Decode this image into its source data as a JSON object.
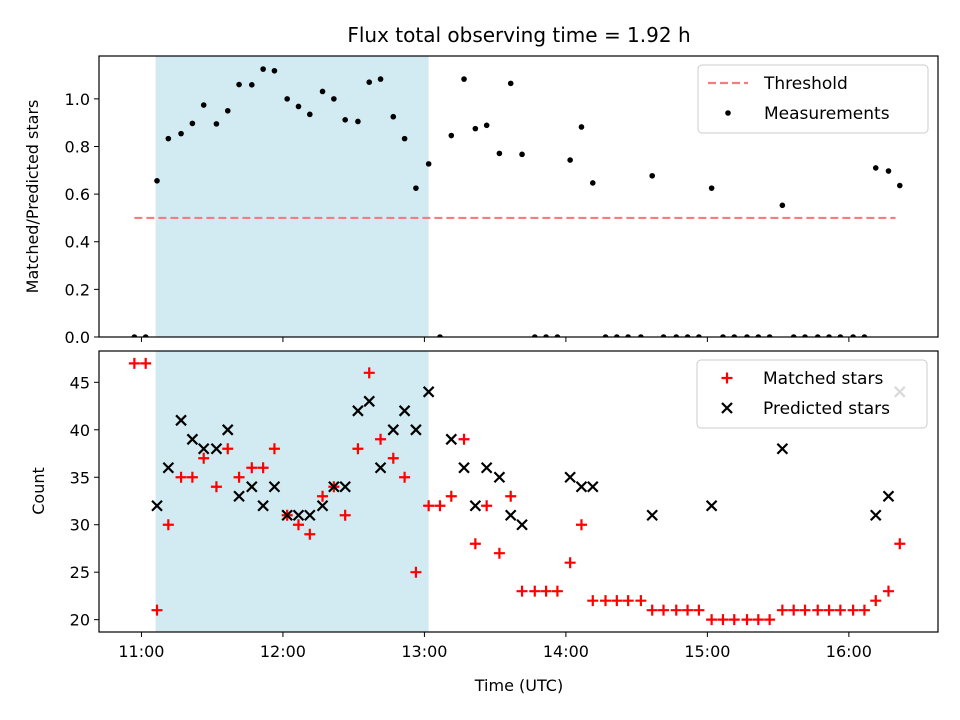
{
  "chart_data": [
    {
      "type": "scatter",
      "title": "Flux total observing time = 1.92 h",
      "xlabel": "",
      "ylabel": "Matched/Predicted stars",
      "x_unit": "hours (UTC)",
      "xlim": [
        10.7,
        16.63
      ],
      "ylim": [
        0,
        1.18
      ],
      "yticks": [
        0.0,
        0.2,
        0.4,
        0.6,
        0.8,
        1.0
      ],
      "ytick_labels": [
        "0.0",
        "0.2",
        "0.4",
        "0.6",
        "0.8",
        "1.0"
      ],
      "xticks": [
        11,
        12,
        13,
        14,
        15,
        16
      ],
      "shaded_span": [
        11.1,
        13.03
      ],
      "shade_color": "#add8e6",
      "grid": false,
      "legend_position": "upper right",
      "legend": [
        "Threshold",
        "Measurements"
      ],
      "series": [
        {
          "name": "Threshold",
          "kind": "dashed-line",
          "color": "#f08080",
          "x": [
            10.95,
            16.33
          ],
          "y": [
            0.5,
            0.5
          ]
        },
        {
          "name": "Measurements",
          "kind": "dot",
          "color": "#000000",
          "x": [
            10.95,
            11.03,
            11.11,
            11.19,
            11.28,
            11.36,
            11.44,
            11.53,
            11.61,
            11.69,
            11.78,
            11.86,
            11.94,
            12.03,
            12.11,
            12.19,
            12.28,
            12.36,
            12.44,
            12.53,
            12.61,
            12.69,
            12.78,
            12.86,
            12.94,
            13.03,
            13.11,
            13.19,
            13.28,
            13.36,
            13.44,
            13.53,
            13.61,
            13.69,
            13.78,
            13.86,
            13.94,
            14.03,
            14.11,
            14.19,
            14.28,
            14.36,
            14.44,
            14.53,
            14.61,
            14.69,
            14.78,
            14.86,
            14.94,
            15.03,
            15.11,
            15.19,
            15.28,
            15.36,
            15.44,
            15.53,
            15.61,
            15.69,
            15.78,
            15.86,
            15.94,
            16.03,
            16.11,
            16.19,
            16.28,
            16.36
          ],
          "y": [
            0.0,
            0.0,
            0.656,
            0.833,
            0.854,
            0.897,
            0.974,
            0.895,
            0.95,
            1.06,
            1.059,
            1.125,
            1.118,
            1.0,
            0.968,
            0.935,
            1.031,
            1.0,
            0.912,
            0.905,
            1.07,
            1.083,
            0.925,
            0.833,
            0.625,
            0.727,
            0.0,
            0.846,
            1.083,
            0.875,
            0.889,
            0.771,
            1.065,
            0.767,
            0.0,
            0.0,
            0.0,
            0.743,
            0.882,
            0.647,
            0.0,
            0.0,
            0.0,
            0.0,
            0.677,
            0.0,
            0.0,
            0.0,
            0.0,
            0.625,
            0.0,
            0.0,
            0.0,
            0.0,
            0.0,
            0.553,
            0.0,
            0.0,
            0.0,
            0.0,
            0.0,
            0.0,
            0.0,
            0.71,
            0.697,
            0.636
          ]
        }
      ]
    },
    {
      "type": "scatter",
      "title": "",
      "xlabel": "Time (UTC)",
      "ylabel": "Count",
      "x_unit": "hours (UTC)",
      "xlim": [
        10.7,
        16.63
      ],
      "ylim": [
        18.7,
        48.3
      ],
      "yticks": [
        20,
        25,
        30,
        35,
        40,
        45
      ],
      "ytick_labels": [
        "20",
        "25",
        "30",
        "35",
        "40",
        "45"
      ],
      "xticks": [
        11,
        12,
        13,
        14,
        15,
        16
      ],
      "xtick_labels": [
        "11:00",
        "12:00",
        "13:00",
        "14:00",
        "15:00",
        "16:00"
      ],
      "shaded_span": [
        11.1,
        13.03
      ],
      "shade_color": "#add8e6",
      "grid": false,
      "legend_position": "upper right",
      "legend": [
        "Matched stars",
        "Predicted stars"
      ],
      "series": [
        {
          "name": "Matched stars",
          "kind": "plus",
          "color": "#ff0000",
          "x": [
            10.95,
            11.03,
            11.11,
            11.19,
            11.28,
            11.36,
            11.44,
            11.53,
            11.61,
            11.69,
            11.78,
            11.86,
            11.94,
            12.03,
            12.11,
            12.19,
            12.28,
            12.36,
            12.44,
            12.53,
            12.61,
            12.69,
            12.78,
            12.86,
            12.94,
            13.03,
            13.11,
            13.19,
            13.28,
            13.36,
            13.44,
            13.53,
            13.61,
            13.69,
            13.78,
            13.86,
            13.94,
            14.03,
            14.11,
            14.19,
            14.28,
            14.36,
            14.44,
            14.53,
            14.61,
            14.69,
            14.78,
            14.86,
            14.94,
            15.03,
            15.11,
            15.19,
            15.28,
            15.36,
            15.44,
            15.53,
            15.61,
            15.69,
            15.78,
            15.86,
            15.94,
            16.03,
            16.11,
            16.19,
            16.28,
            16.36
          ],
          "y": [
            47,
            47,
            21,
            30,
            35,
            35,
            37,
            34,
            38,
            35,
            36,
            36,
            38,
            31,
            30,
            29,
            33,
            34,
            31,
            38,
            46,
            39,
            37,
            35,
            25,
            32,
            32,
            33,
            39,
            28,
            32,
            27,
            33,
            23,
            23,
            23,
            23,
            26,
            30,
            22,
            22,
            22,
            22,
            22,
            21,
            21,
            21,
            21,
            21,
            20,
            20,
            20,
            20,
            20,
            20,
            21,
            21,
            21,
            21,
            21,
            21,
            21,
            21,
            22,
            23,
            28
          ]
        },
        {
          "name": "Predicted stars",
          "kind": "cross",
          "color": "#000000",
          "x": [
            11.11,
            11.19,
            11.28,
            11.36,
            11.44,
            11.53,
            11.61,
            11.69,
            11.78,
            11.86,
            11.94,
            12.03,
            12.11,
            12.19,
            12.28,
            12.36,
            12.44,
            12.53,
            12.61,
            12.69,
            12.78,
            12.86,
            12.94,
            13.03,
            13.19,
            13.28,
            13.36,
            13.44,
            13.53,
            13.61,
            13.69,
            14.03,
            14.11,
            14.19,
            14.61,
            15.03,
            15.53,
            16.19,
            16.28,
            16.36
          ],
          "y": [
            32,
            36,
            41,
            39,
            38,
            38,
            40,
            33,
            34,
            32,
            34,
            31,
            31,
            31,
            32,
            34,
            34,
            42,
            43,
            36,
            40,
            42,
            40,
            44,
            39,
            36,
            32,
            36,
            35,
            31,
            30,
            35,
            34,
            34,
            31,
            32,
            38,
            31,
            33,
            44
          ]
        }
      ]
    }
  ]
}
